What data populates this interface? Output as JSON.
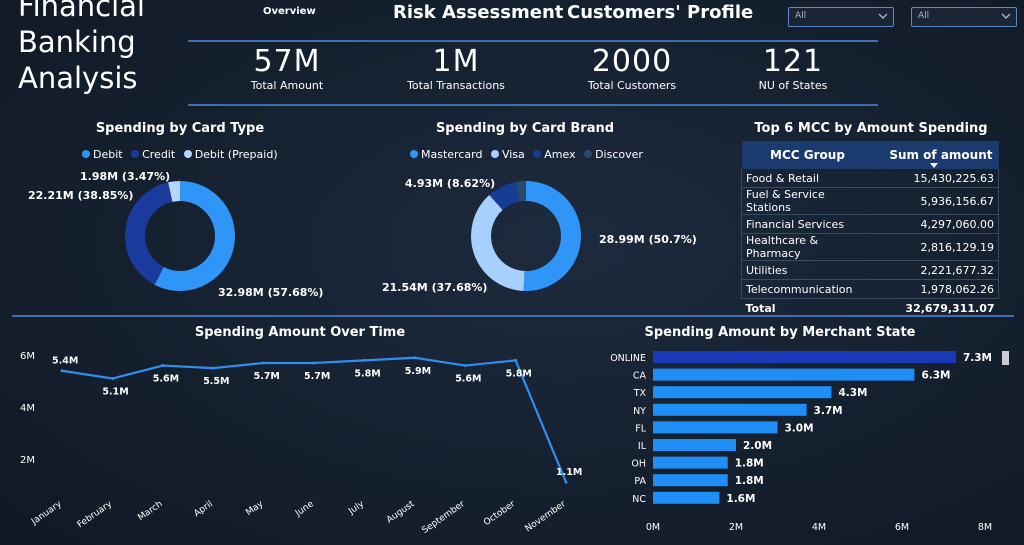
{
  "header": {
    "title_lines": [
      "Financial",
      "Banking",
      "Analysis"
    ],
    "tabs": {
      "overview": "Overview",
      "risk": "Risk Assessment",
      "customers": "Customers' Profile"
    },
    "slicers": [
      "All",
      "All"
    ]
  },
  "kpis": [
    {
      "value": "57M",
      "label": "Total Amount"
    },
    {
      "value": "1M",
      "label": "Total Transactions"
    },
    {
      "value": "2000",
      "label": "Total Customers"
    },
    {
      "value": "121",
      "label": "NU of States"
    }
  ],
  "card_type": {
    "title": "Spending by Card Type",
    "legend": [
      "Debit",
      "Credit",
      "Debit (Prepaid)"
    ],
    "labels": {
      "debit": "32.98M (57.68%)",
      "credit": "22.21M (38.85%)",
      "prepaid": "1.98M (3.47%)"
    }
  },
  "card_brand": {
    "title": "Spending by Card Brand",
    "legend": [
      "Mastercard",
      "Visa",
      "Amex",
      "Discover"
    ],
    "labels": {
      "mastercard": "28.99M (50.7%)",
      "visa": "21.54M (37.68%)",
      "amex": "4.93M (8.62%)"
    }
  },
  "mcc": {
    "title": "Top 6 MCC by Amount Spending",
    "headers": [
      "MCC Group",
      "Sum of amount"
    ],
    "rows": [
      {
        "group": "Food & Retail",
        "amount": "15,430,225.63"
      },
      {
        "group": "Fuel & Service Stations",
        "amount": "5,936,156.67"
      },
      {
        "group": "Financial Services",
        "amount": "4,297,060.00"
      },
      {
        "group": "Healthcare & Pharmacy",
        "amount": "2,816,129.19"
      },
      {
        "group": "Utilities",
        "amount": "2,221,677.32"
      },
      {
        "group": "Telecommunication",
        "amount": "1,978,062.26"
      }
    ],
    "total_label": "Total",
    "total_value": "32,679,311.07"
  },
  "colors": {
    "debit": "#2f95f7",
    "credit": "#1a3a9e",
    "prepaid": "#b3d7ff",
    "mastercard": "#2f95f7",
    "visa": "#a8d0ff",
    "amex": "#163d94",
    "discover": "#2a4a6e",
    "line": "#2f8ff0",
    "bar_highlight": "#1a3ab8",
    "bar": "#1f8ff5"
  },
  "chart_data": [
    {
      "type": "pie",
      "title": "Spending by Card Type",
      "categories": [
        "Debit",
        "Credit",
        "Debit (Prepaid)"
      ],
      "values": [
        32.98,
        22.21,
        1.98
      ],
      "percents": [
        57.68,
        38.85,
        3.47
      ],
      "unit": "M"
    },
    {
      "type": "pie",
      "title": "Spending by Card Brand",
      "categories": [
        "Mastercard",
        "Visa",
        "Amex",
        "Discover"
      ],
      "values": [
        28.99,
        21.54,
        4.93,
        1.72
      ],
      "percents": [
        50.7,
        37.68,
        8.62,
        3.0
      ],
      "unit": "M"
    },
    {
      "type": "line",
      "title": "Spending Amount Over Time",
      "categories": [
        "January",
        "February",
        "March",
        "April",
        "May",
        "June",
        "July",
        "August",
        "September",
        "October",
        "November"
      ],
      "values": [
        5.4,
        5.1,
        5.6,
        5.5,
        5.7,
        5.7,
        5.8,
        5.9,
        5.6,
        5.8,
        1.1
      ],
      "data_labels": [
        "5.4M",
        "5.1M",
        "5.6M",
        "5.5M",
        "5.7M",
        "5.7M",
        "5.8M",
        "5.9M",
        "5.6M",
        "5.8M",
        "1.1M"
      ],
      "y_ticks": [
        "2M",
        "4M",
        "6M"
      ],
      "y_tick_values": [
        2,
        4,
        6
      ],
      "ylim": [
        0.8,
        6.2
      ],
      "grid": false
    },
    {
      "type": "bar",
      "orientation": "horizontal",
      "title": "Spending Amount by Merchant State",
      "categories": [
        "ONLINE",
        "CA",
        "TX",
        "NY",
        "FL",
        "IL",
        "OH",
        "PA",
        "NC"
      ],
      "values": [
        7.3,
        6.3,
        4.3,
        3.7,
        3.0,
        2.0,
        1.8,
        1.8,
        1.6
      ],
      "data_labels": [
        "7.3M",
        "6.3M",
        "4.3M",
        "3.7M",
        "3.0M",
        "2.0M",
        "1.8M",
        "1.8M",
        "1.6M"
      ],
      "x_ticks": [
        "0M",
        "2M",
        "4M",
        "6M",
        "8M"
      ],
      "x_tick_values": [
        0,
        2,
        4,
        6,
        8
      ],
      "xlim": [
        0,
        8
      ],
      "grid": false
    }
  ]
}
